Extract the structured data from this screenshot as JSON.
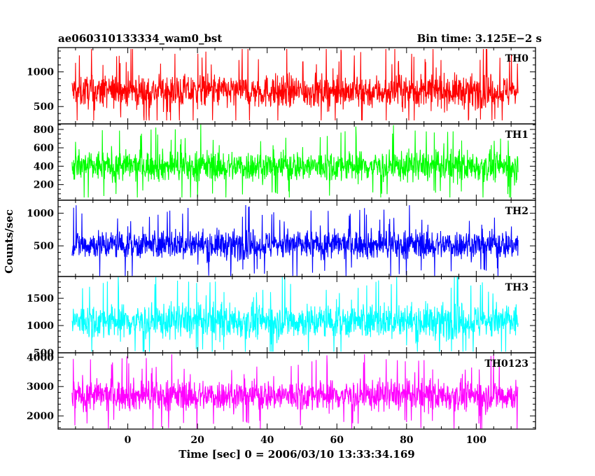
{
  "header": {
    "left_title": "ae060310133334_wam0_bst",
    "right_title": "Bin time: 3.125E−2 s"
  },
  "chart_data": {
    "type": "line",
    "xlabel": "Time [sec] 0 = 2006/03/10 13:33:34.169",
    "ylabel": "Counts/sec",
    "xlim": [
      -20,
      117
    ],
    "x_ticks": [
      0,
      20,
      40,
      60,
      80,
      100
    ],
    "x_range": [
      -16,
      112
    ],
    "bin_time": 0.03125,
    "panels": [
      {
        "name": "TH0",
        "color": "#ff0000",
        "ylim": [
          250,
          1350
        ],
        "y_ticks": [
          500,
          1000
        ],
        "y_minor": 100,
        "mean": 720,
        "spread": 170,
        "min": 300,
        "max": 1330
      },
      {
        "name": "TH1",
        "color": "#00ff00",
        "ylim": [
          30,
          860
        ],
        "y_ticks": [
          200,
          400,
          600,
          800
        ],
        "y_minor": 50,
        "mean": 400,
        "spread": 120,
        "min": 60,
        "max": 860
      },
      {
        "name": "TH2",
        "color": "#0000ff",
        "ylim": [
          30,
          1200
        ],
        "y_ticks": [
          500,
          1000
        ],
        "y_minor": 100,
        "mean": 520,
        "spread": 160,
        "min": 40,
        "max": 1180
      },
      {
        "name": "TH3",
        "color": "#00ffff",
        "ylim": [
          500,
          1900
        ],
        "y_ticks": [
          500,
          1000,
          1500
        ],
        "y_minor": 100,
        "mean": 1080,
        "spread": 230,
        "min": 520,
        "max": 1890
      },
      {
        "name": "TH0123",
        "color": "#ff00ff",
        "ylim": [
          1550,
          4150
        ],
        "y_ticks": [
          2000,
          3000,
          4000
        ],
        "y_minor": 200,
        "mean": 2700,
        "spread": 380,
        "min": 1570,
        "max": 4100
      }
    ]
  }
}
